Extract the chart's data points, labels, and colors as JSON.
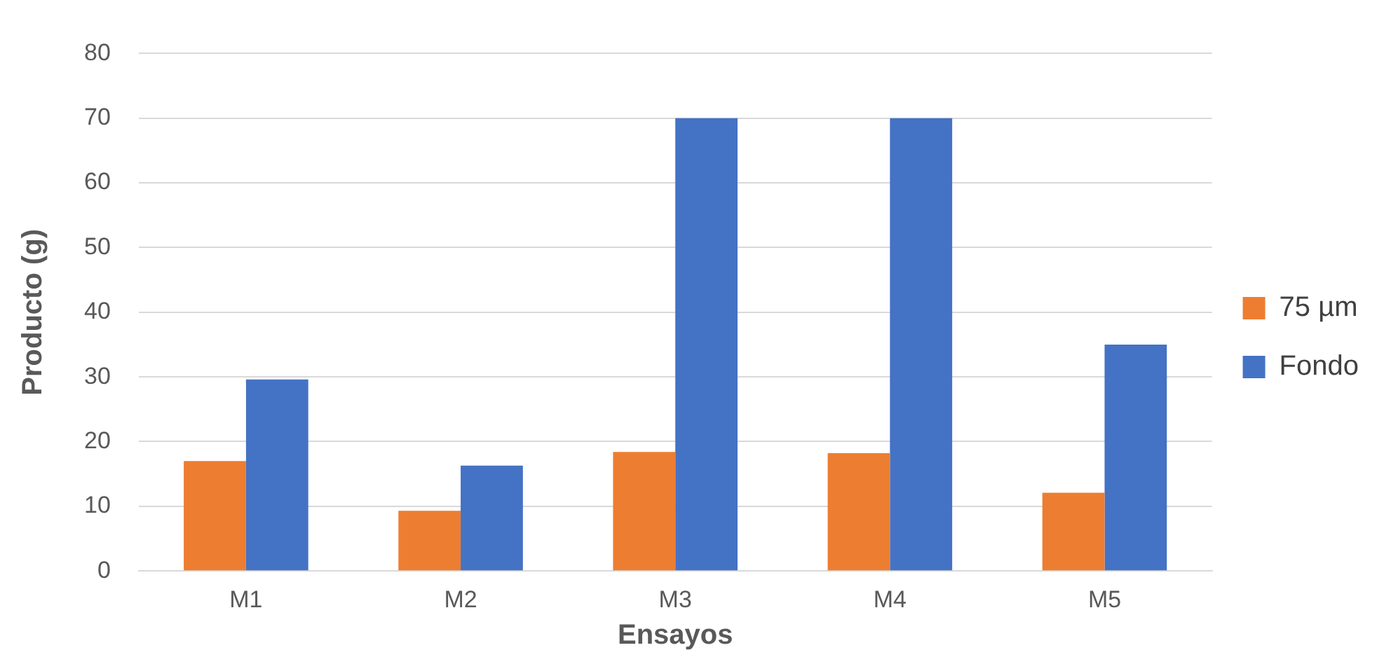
{
  "chart_data": {
    "type": "bar",
    "xlabel": "Ensayos",
    "ylabel": "Producto (g)",
    "categories": [
      "M1",
      "M2",
      "M3",
      "M4",
      "M5"
    ],
    "series": [
      {
        "name": "75 µm",
        "color": "#ed7d31",
        "values": [
          17,
          9.3,
          18.4,
          18.2,
          12.1
        ]
      },
      {
        "name": "Fondo",
        "color": "#4472c4",
        "values": [
          29.6,
          16.3,
          70,
          70,
          35
        ]
      }
    ],
    "ylim": [
      0,
      80
    ],
    "yticks": [
      0,
      10,
      20,
      30,
      40,
      50,
      60,
      70,
      80
    ],
    "grid": "y",
    "legend": "right"
  }
}
